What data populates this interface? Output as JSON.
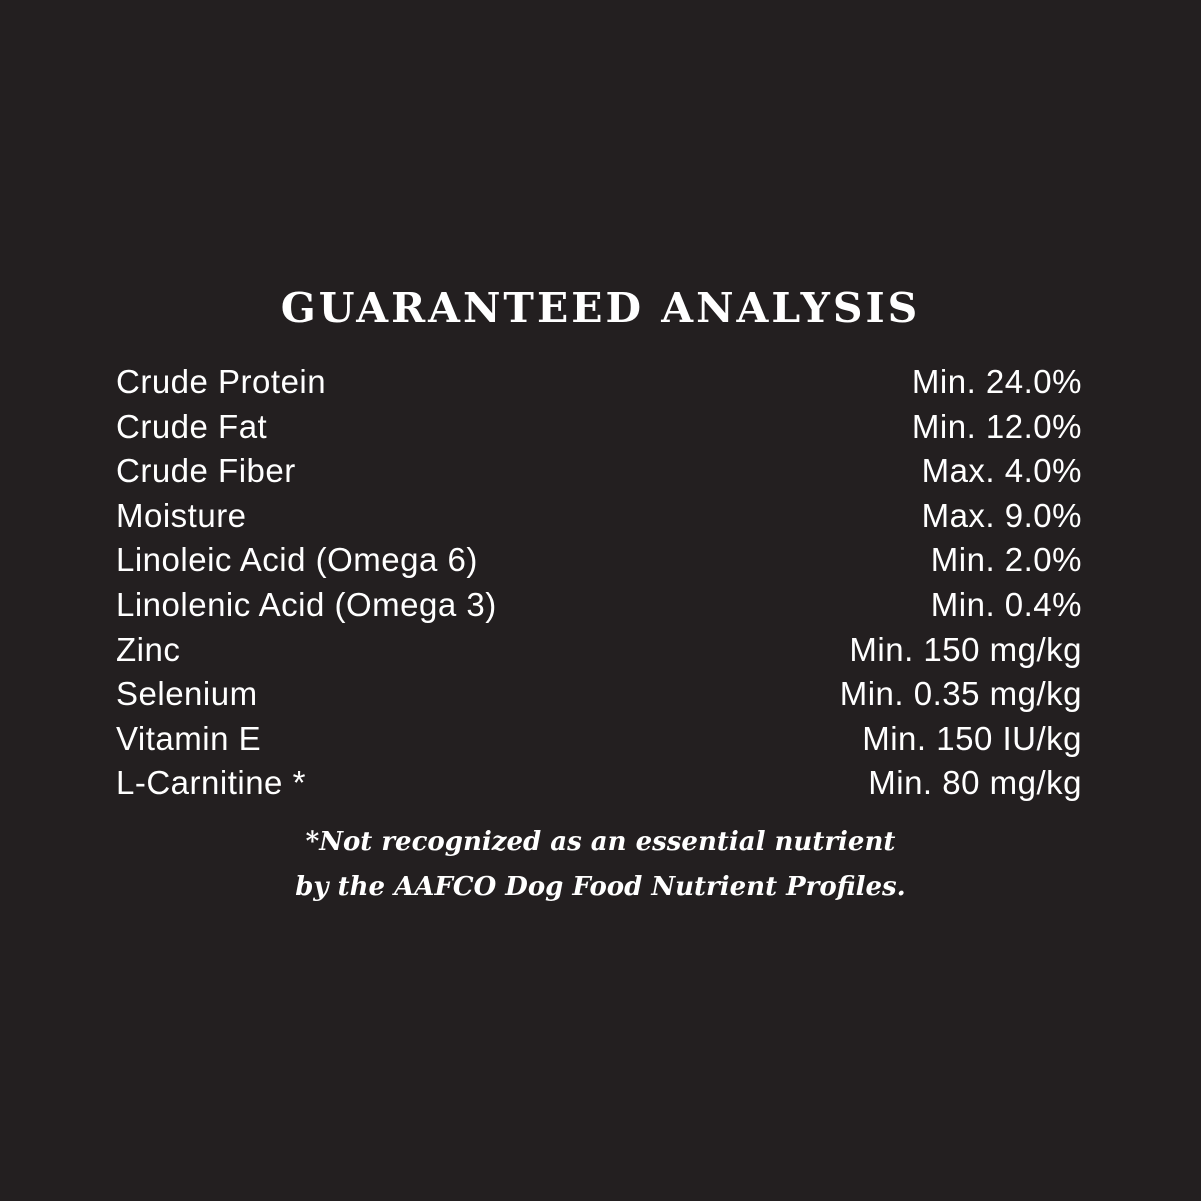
{
  "title": "GUARANTEED ANALYSIS",
  "rows": [
    {
      "nutrient": "Crude Protein",
      "value": "Min. 24.0%"
    },
    {
      "nutrient": "Crude Fat",
      "value": "Min. 12.0%"
    },
    {
      "nutrient": "Crude Fiber",
      "value": "Max. 4.0%"
    },
    {
      "nutrient": "Moisture",
      "value": "Max. 9.0%"
    },
    {
      "nutrient": "Linoleic Acid (Omega 6)",
      "value": "Min. 2.0%"
    },
    {
      "nutrient": "Linolenic Acid (Omega 3)",
      "value": "Min. 0.4%"
    },
    {
      "nutrient": "Zinc",
      "value": "Min. 150 mg/kg"
    },
    {
      "nutrient": "Selenium",
      "value": "Min. 0.35 mg/kg"
    },
    {
      "nutrient": "Vitamin E",
      "value": "Min. 150 IU/kg"
    },
    {
      "nutrient": "L-Carnitine *",
      "value": "Min. 80 mg/kg"
    }
  ],
  "footnote": {
    "line1": "*Not recognized as an essential nutrient",
    "line2": "by the AAFCO Dog Food Nutrient Profiles."
  },
  "colors": {
    "background": "#231f20",
    "text": "#ffffff"
  }
}
